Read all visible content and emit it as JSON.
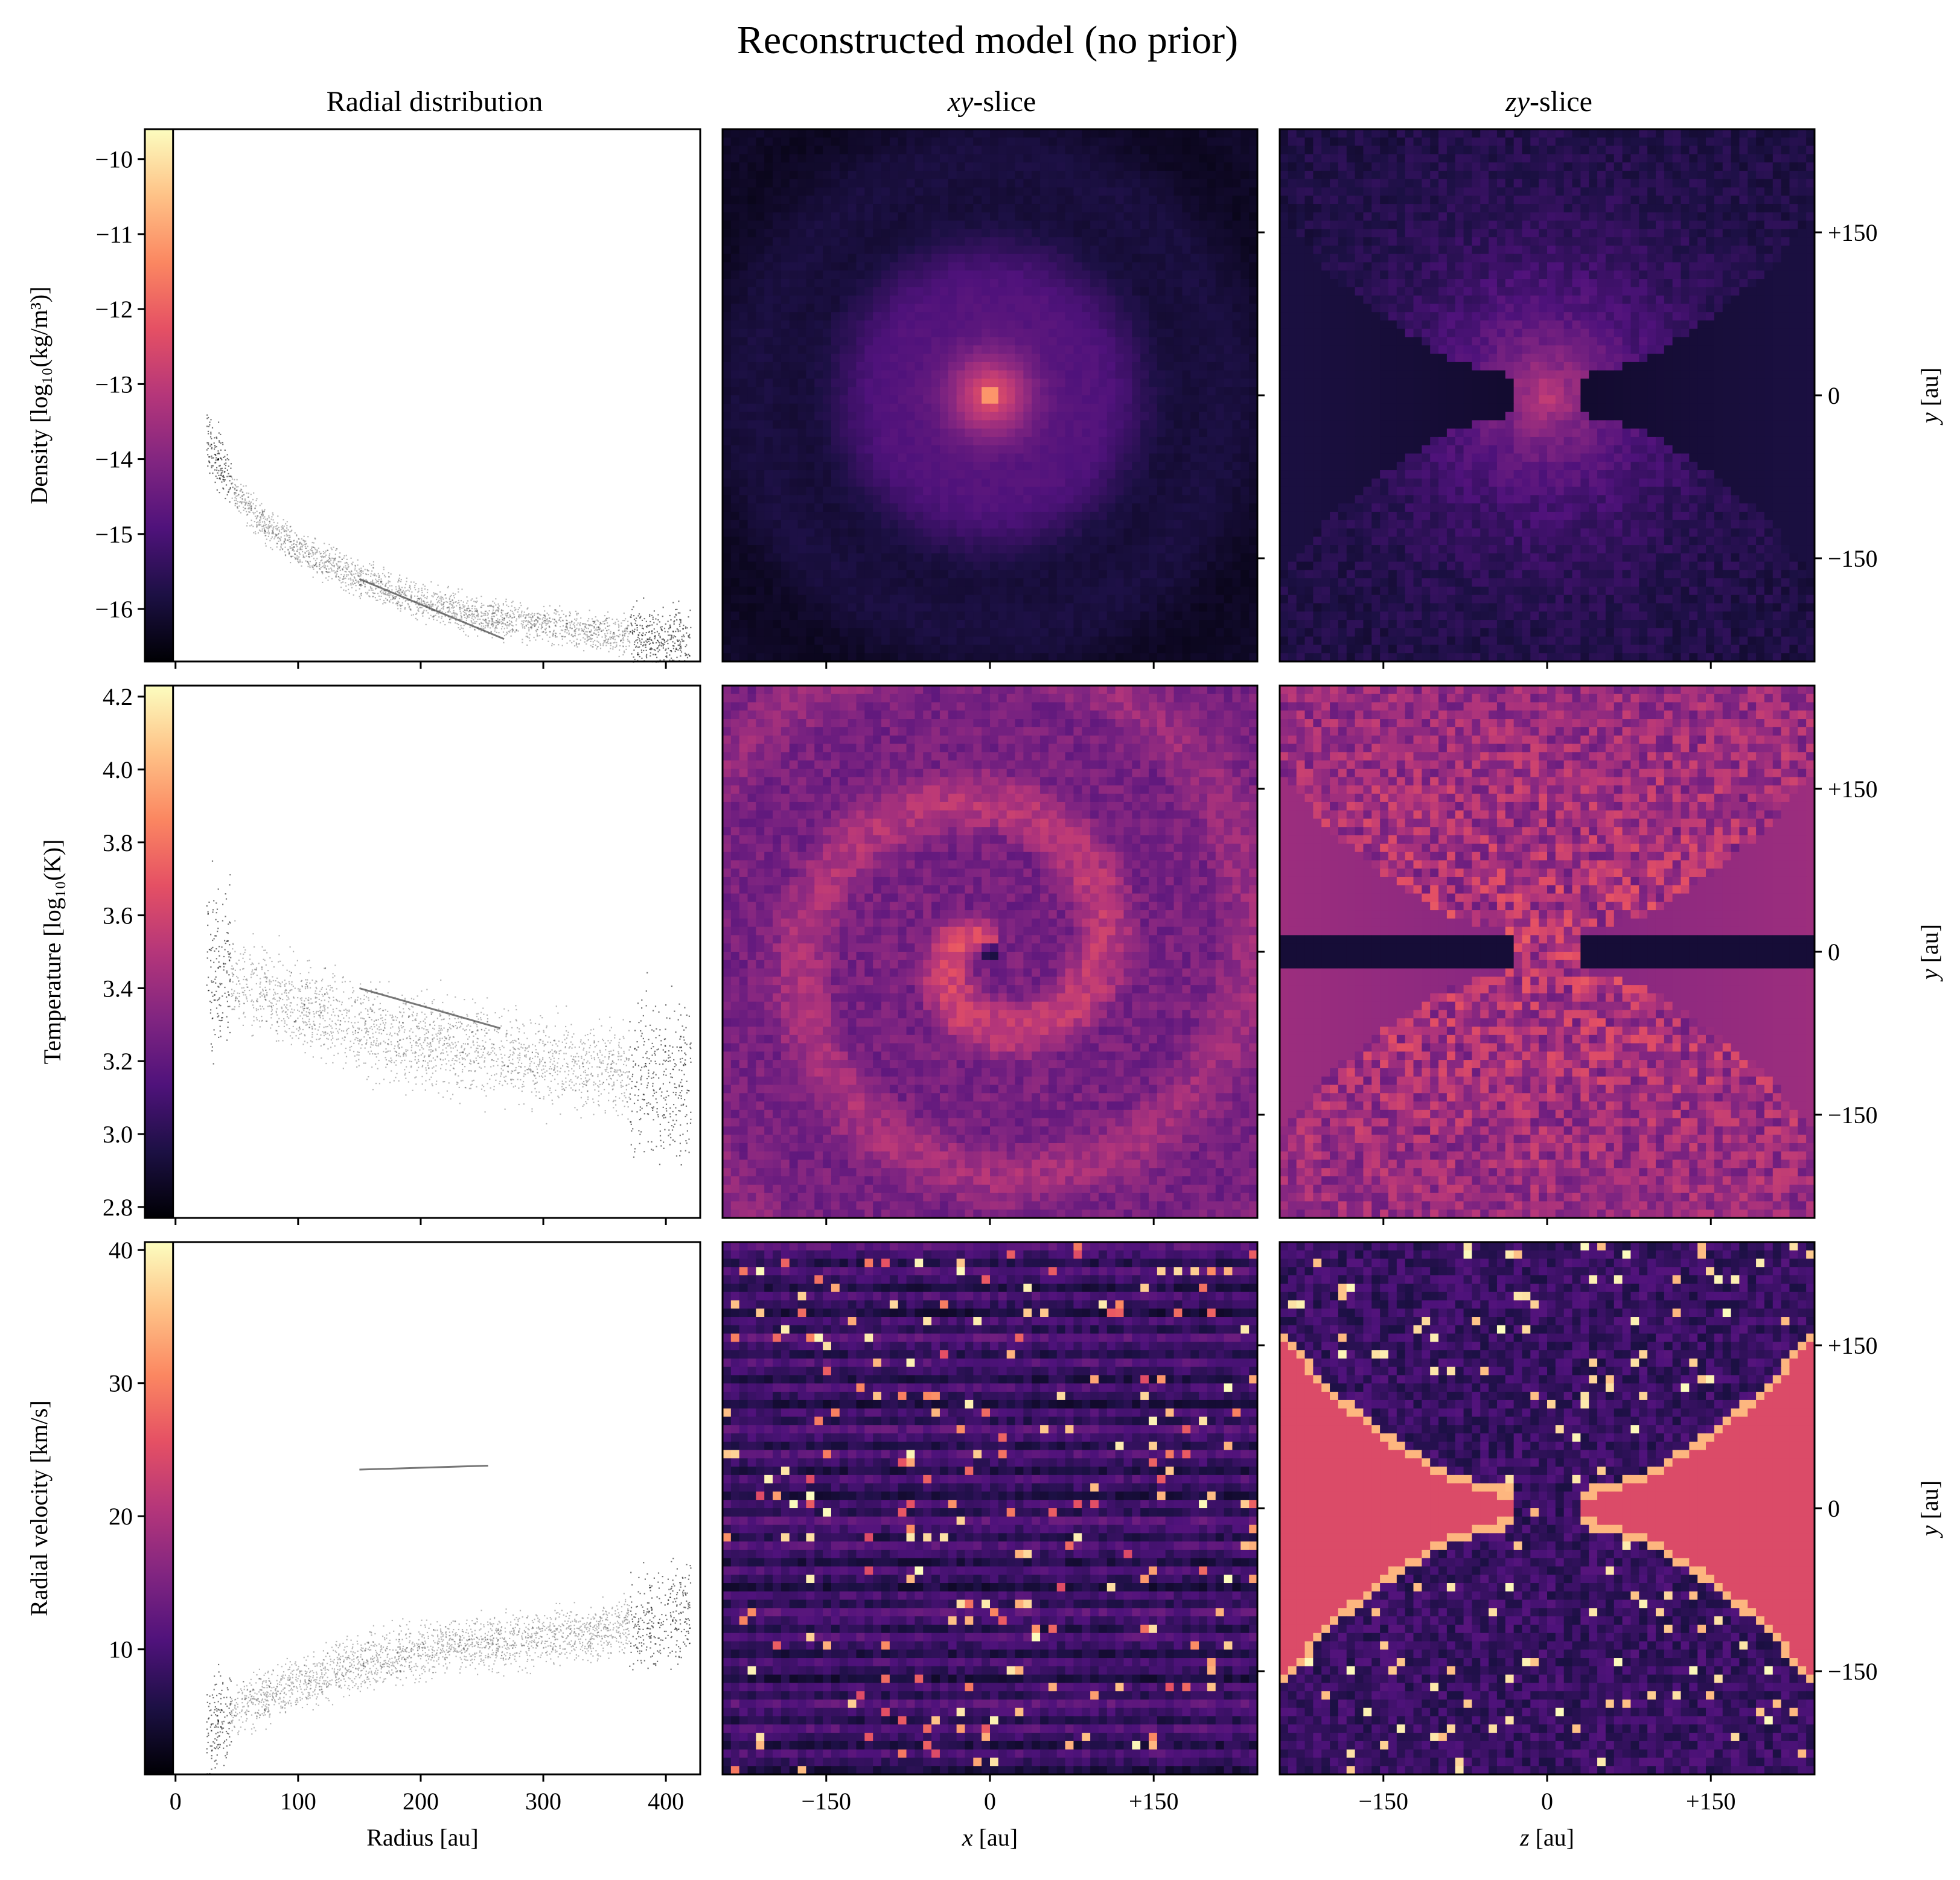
{
  "figure": {
    "title": "Reconstructed model (no prior)",
    "colormap": "magma",
    "colormap_stops": [
      "#000004",
      "#1c1044",
      "#4f127b",
      "#812581",
      "#b5367a",
      "#e55064",
      "#fb8761",
      "#fec287",
      "#fcfdbf"
    ]
  },
  "columns": {
    "radial": "Radial distribution",
    "xy_prefix": "xy",
    "zy_prefix": "zy",
    "slice_suffix": "-slice"
  },
  "rows": [
    {
      "key": "density",
      "ylabel": "Density [log₁₀(kg/m³)]"
    },
    {
      "key": "temperature",
      "ylabel": "Temperature [log₁₀(K)]"
    },
    {
      "key": "velocity",
      "ylabel": "Radial velocity [km/s]"
    }
  ],
  "axes_labels": {
    "radius": "Radius [au]",
    "x_var": "x",
    "z_var": "z",
    "y_var": "y",
    "unit": " [au]"
  },
  "chart_data": [
    {
      "type": "scatter",
      "panel": "density-radial",
      "xlabel": "Radius [au]",
      "ylabel": "Density [log₁₀(kg/m³)]",
      "xlim": [
        -25,
        428
      ],
      "ylim": [
        -16.7,
        -9.6
      ],
      "xticks": [
        0,
        100,
        200,
        300,
        400
      ],
      "yticks": [
        -10,
        -11,
        -12,
        -13,
        -14,
        -15,
        -16
      ],
      "ytick_labels": [
        "−10",
        "−11",
        "−12",
        "−13",
        "−14",
        "−15",
        "−16"
      ],
      "colorbar_range": [
        -16.7,
        -9.6
      ],
      "trend_x": [
        25,
        50,
        75,
        100,
        150,
        200,
        250,
        300,
        350,
        400,
        420
      ],
      "trend_y": [
        -13.7,
        -14.5,
        -14.9,
        -15.2,
        -15.6,
        -15.9,
        -16.1,
        -16.2,
        -16.3,
        -16.4,
        -16.4
      ],
      "spread": 0.35,
      "ridge_x": [
        150,
        268
      ],
      "ridge_y": [
        -15.6,
        -16.4
      ]
    },
    {
      "type": "scatter",
      "panel": "temperature-radial",
      "xlabel": "Radius [au]",
      "ylabel": "Temperature [log₁₀(K)]",
      "xlim": [
        -25,
        428
      ],
      "ylim": [
        2.77,
        4.23
      ],
      "xticks": [
        0,
        100,
        200,
        300,
        400
      ],
      "yticks": [
        2.8,
        3.0,
        3.2,
        3.4,
        3.6,
        3.8,
        4.0,
        4.2
      ],
      "ytick_labels": [
        "2.8",
        "3.0",
        "3.2",
        "3.4",
        "3.6",
        "3.8",
        "4.0",
        "4.2"
      ],
      "colorbar_range": [
        2.77,
        4.23
      ],
      "trend_x": [
        25,
        50,
        100,
        150,
        200,
        250,
        300,
        350,
        400,
        420
      ],
      "trend_y": [
        3.48,
        3.42,
        3.35,
        3.3,
        3.26,
        3.23,
        3.2,
        3.18,
        3.15,
        3.14
      ],
      "spread": 0.18,
      "ridge_x": [
        150,
        265
      ],
      "ridge_y": [
        3.4,
        3.29
      ]
    },
    {
      "type": "scatter",
      "panel": "velocity-radial",
      "xlabel": "Radius [au]",
      "ylabel": "Radial velocity [km/s]",
      "xlim": [
        -25,
        428
      ],
      "ylim": [
        0.6,
        40.6
      ],
      "xticks": [
        0,
        100,
        200,
        300,
        400
      ],
      "yticks": [
        10,
        20,
        30,
        40
      ],
      "ytick_labels": [
        "10",
        "20",
        "30",
        "40"
      ],
      "colorbar_range": [
        0.6,
        40.6
      ],
      "trend_x": [
        25,
        50,
        100,
        150,
        200,
        250,
        300,
        350,
        400,
        420
      ],
      "trend_y": [
        4,
        5.5,
        7.5,
        9,
        10,
        10.5,
        11,
        11.5,
        12.5,
        13
      ],
      "spread": 3.0,
      "ridge_x": [
        150,
        255
      ],
      "ridge_y": [
        23.5,
        23.8
      ]
    }
  ],
  "slices": {
    "tick_values": [
      -150,
      0,
      150
    ],
    "tick_labels": [
      "−150",
      "0",
      "+150"
    ],
    "extent_au": [
      -245,
      245
    ],
    "grid_cells": 64
  }
}
